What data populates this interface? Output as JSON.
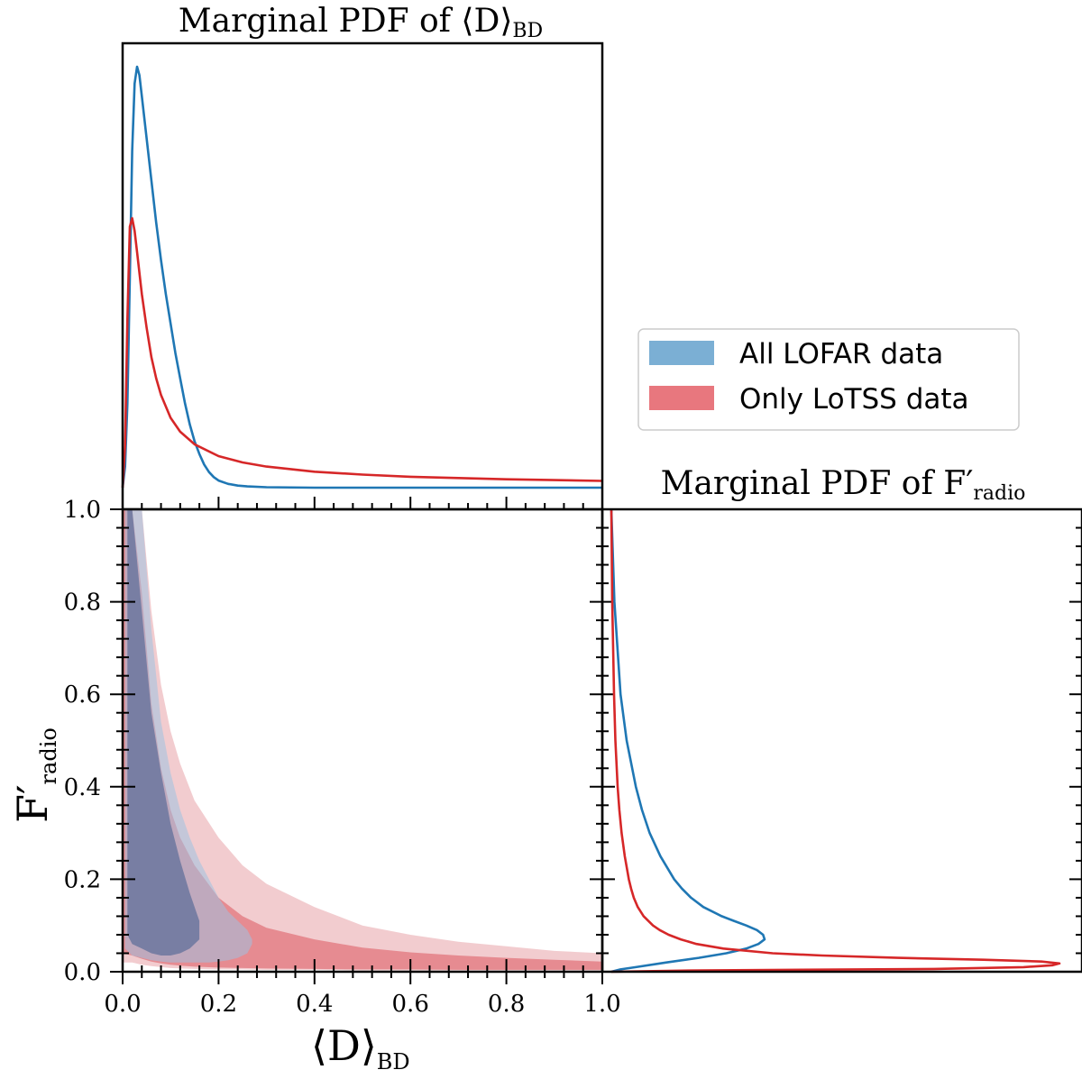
{
  "chart_data": [
    {
      "type": "line",
      "panel": "top-marginal",
      "title": "Marginal PDF of ⟨D⟩",
      "title_subscript": "BD",
      "xlim": [
        0.0,
        1.0
      ],
      "y_tick_labels_shown": false,
      "series": [
        {
          "name": "All LOFAR data",
          "color": "#1f77b4",
          "x": [
            0.0,
            0.005,
            0.01,
            0.015,
            0.02,
            0.025,
            0.03,
            0.035,
            0.04,
            0.05,
            0.06,
            0.07,
            0.08,
            0.09,
            0.1,
            0.11,
            0.12,
            0.13,
            0.14,
            0.15,
            0.16,
            0.17,
            0.18,
            0.19,
            0.2,
            0.22,
            0.24,
            0.26,
            0.3,
            0.4,
            0.6,
            0.8,
            1.0
          ],
          "y": [
            0.0,
            0.05,
            0.2,
            0.5,
            0.8,
            0.96,
            1.0,
            0.98,
            0.93,
            0.83,
            0.73,
            0.63,
            0.54,
            0.46,
            0.39,
            0.32,
            0.26,
            0.2,
            0.15,
            0.11,
            0.08,
            0.055,
            0.037,
            0.025,
            0.017,
            0.009,
            0.005,
            0.003,
            0.001,
            0.0,
            0.0,
            0.0,
            0.0
          ]
        },
        {
          "name": "Only LoTSS data",
          "color": "#d62728",
          "x": [
            0.0,
            0.005,
            0.01,
            0.015,
            0.02,
            0.025,
            0.03,
            0.04,
            0.05,
            0.06,
            0.07,
            0.08,
            0.1,
            0.12,
            0.15,
            0.2,
            0.25,
            0.3,
            0.4,
            0.5,
            0.6,
            0.7,
            0.8,
            0.9,
            1.0
          ],
          "y": [
            0.0,
            0.1,
            0.4,
            0.62,
            0.64,
            0.61,
            0.56,
            0.46,
            0.38,
            0.31,
            0.26,
            0.22,
            0.166,
            0.133,
            0.103,
            0.075,
            0.06,
            0.05,
            0.038,
            0.031,
            0.026,
            0.023,
            0.02,
            0.018,
            0.016
          ]
        }
      ]
    },
    {
      "type": "area",
      "panel": "joint",
      "xlabel": "⟨D⟩",
      "xlabel_subscript": "BD",
      "ylabel": "F′",
      "ylabel_subscript": "radio",
      "xlim": [
        0.0,
        1.0
      ],
      "ylim": [
        0.0,
        1.0
      ],
      "x_tick_labels": [
        "0.0",
        "0.2",
        "0.4",
        "0.6",
        "0.8",
        "1.0"
      ],
      "y_tick_labels": [
        "0.0",
        "0.2",
        "0.4",
        "0.6",
        "0.8",
        "1.0"
      ],
      "series": [
        {
          "name": "Only LoTSS data",
          "level": "outer",
          "color": "#e8a3a8",
          "x": [
            0.0,
            0.02,
            0.04,
            0.06,
            0.08,
            0.1,
            0.12,
            0.15,
            0.2,
            0.25,
            0.3,
            0.4,
            0.5,
            0.6,
            0.7,
            0.8,
            0.9,
            1.0
          ],
          "y_low": [
            0.02,
            0.02,
            0.015,
            0.012,
            0.01,
            0.008,
            0.007,
            0.006,
            0.005,
            0.005,
            0.004,
            0.004,
            0.003,
            0.003,
            0.003,
            0.003,
            0.003,
            0.003
          ],
          "y_high": [
            1.0,
            1.0,
            1.0,
            0.78,
            0.62,
            0.52,
            0.45,
            0.37,
            0.29,
            0.23,
            0.19,
            0.14,
            0.1,
            0.08,
            0.065,
            0.055,
            0.045,
            0.04
          ]
        },
        {
          "name": "Only LoTSS data",
          "level": "inner",
          "color": "#e07278",
          "x": [
            0.0,
            0.02,
            0.04,
            0.06,
            0.08,
            0.1,
            0.12,
            0.15,
            0.2,
            0.25,
            0.3,
            0.4,
            0.5,
            0.6,
            0.7,
            0.8,
            0.9,
            1.0
          ],
          "y_low": [
            0.04,
            0.035,
            0.028,
            0.022,
            0.018,
            0.015,
            0.013,
            0.011,
            0.009,
            0.008,
            0.007,
            0.006,
            0.005,
            0.005,
            0.004,
            0.004,
            0.004,
            0.004
          ],
          "y_high": [
            1.0,
            1.0,
            0.82,
            0.58,
            0.44,
            0.35,
            0.29,
            0.23,
            0.16,
            0.12,
            0.095,
            0.07,
            0.052,
            0.042,
            0.035,
            0.03,
            0.026,
            0.022
          ]
        },
        {
          "name": "All LOFAR data",
          "level": "outer",
          "color": "#9ec3e1",
          "x": [
            0.005,
            0.02,
            0.04,
            0.06,
            0.08,
            0.1,
            0.12,
            0.14,
            0.16,
            0.18,
            0.2,
            0.22,
            0.24,
            0.26,
            0.27
          ],
          "y_low": [
            0.05,
            0.035,
            0.03,
            0.025,
            0.022,
            0.02,
            0.02,
            0.02,
            0.02,
            0.02,
            0.022,
            0.025,
            0.03,
            0.04,
            0.06
          ],
          "y_high": [
            1.0,
            1.0,
            1.0,
            0.74,
            0.54,
            0.43,
            0.35,
            0.29,
            0.24,
            0.2,
            0.16,
            0.13,
            0.11,
            0.09,
            0.07
          ]
        },
        {
          "name": "All LOFAR data",
          "level": "inner",
          "color": "#5d6d99",
          "x": [
            0.01,
            0.02,
            0.04,
            0.06,
            0.08,
            0.1,
            0.12,
            0.14,
            0.16
          ],
          "y_low": [
            0.08,
            0.06,
            0.05,
            0.04,
            0.035,
            0.035,
            0.04,
            0.05,
            0.07
          ],
          "y_high": [
            1.0,
            1.0,
            0.78,
            0.56,
            0.43,
            0.32,
            0.24,
            0.17,
            0.11
          ]
        }
      ]
    },
    {
      "type": "line",
      "panel": "right-marginal",
      "title": "Marginal PDF of F′",
      "title_subscript": "radio",
      "ylim": [
        0.0,
        1.0
      ],
      "x_tick_labels_shown": false,
      "series": [
        {
          "name": "All LOFAR data",
          "color": "#1f77b4",
          "y": [
            0.0,
            0.005,
            0.01,
            0.02,
            0.03,
            0.04,
            0.05,
            0.06,
            0.07,
            0.08,
            0.09,
            0.1,
            0.11,
            0.12,
            0.14,
            0.16,
            0.18,
            0.2,
            0.25,
            0.3,
            0.35,
            0.4,
            0.5,
            0.6,
            0.7,
            0.8,
            0.9,
            1.0
          ],
          "density": [
            0.0,
            0.06,
            0.16,
            0.36,
            0.57,
            0.75,
            0.88,
            0.96,
            1.0,
            0.99,
            0.95,
            0.88,
            0.8,
            0.72,
            0.6,
            0.52,
            0.46,
            0.41,
            0.32,
            0.25,
            0.2,
            0.16,
            0.1,
            0.06,
            0.04,
            0.02,
            0.01,
            0.0
          ]
        },
        {
          "name": "Only LoTSS data",
          "color": "#d62728",
          "y": [
            0.0,
            0.003,
            0.006,
            0.01,
            0.014,
            0.018,
            0.022,
            0.026,
            0.03,
            0.035,
            0.04,
            0.05,
            0.06,
            0.07,
            0.08,
            0.09,
            0.1,
            0.12,
            0.14,
            0.16,
            0.18,
            0.2,
            0.25,
            0.3,
            0.35,
            0.4,
            0.5,
            0.6,
            0.7,
            0.8,
            0.9,
            1.0
          ],
          "density": [
            0.0,
            0.2,
            0.72,
            0.92,
            0.985,
            1.0,
            0.96,
            0.83,
            0.64,
            0.47,
            0.36,
            0.25,
            0.19,
            0.155,
            0.128,
            0.108,
            0.093,
            0.072,
            0.059,
            0.05,
            0.044,
            0.039,
            0.03,
            0.023,
            0.018,
            0.014,
            0.009,
            0.006,
            0.004,
            0.002,
            0.001,
            0.0
          ]
        }
      ]
    }
  ],
  "legend": {
    "placement": "right, between top marginal and right marginal",
    "entries": [
      {
        "label": "All LOFAR data",
        "color": "#7bafd4"
      },
      {
        "label": "Only LoTSS data",
        "color": "#e8777e"
      }
    ]
  }
}
